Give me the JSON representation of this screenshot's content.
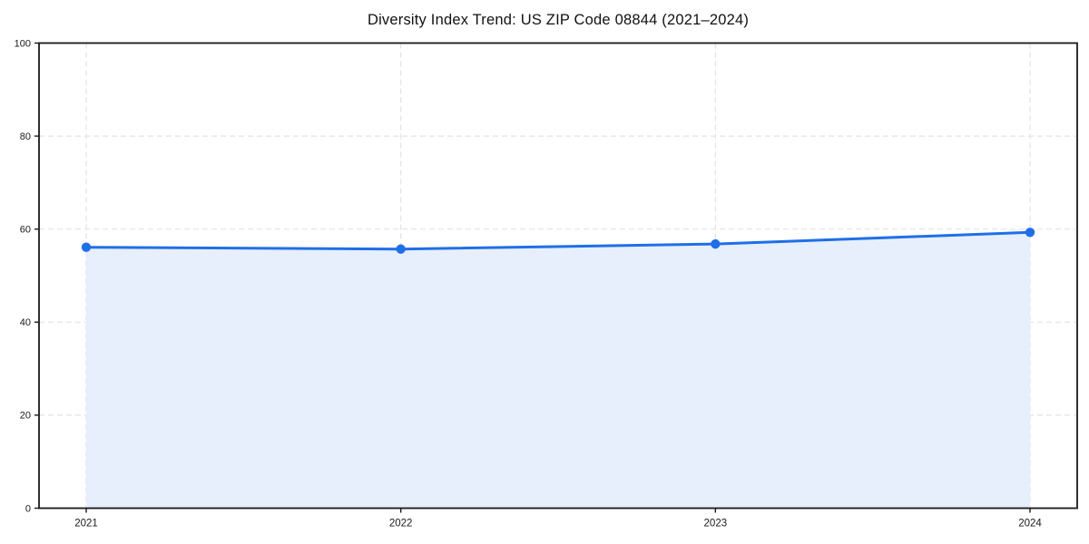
{
  "chart_data": {
    "type": "area",
    "title": "Diversity Index Trend: US ZIP Code 08844 (2021–2024)",
    "categories": [
      "2021",
      "2022",
      "2023",
      "2024"
    ],
    "series": [
      {
        "name": "Diversity Index",
        "values": [
          56.1,
          55.7,
          56.8,
          59.3
        ]
      }
    ],
    "xlabel": "",
    "ylabel": "",
    "ylim": [
      0,
      100
    ],
    "yticks": [
      0,
      20,
      40,
      60,
      80,
      100
    ],
    "grid": true,
    "grid_style": "dashed",
    "legend": "none",
    "marker": "circle",
    "colors": {
      "line": "#1f6fe8",
      "fill": "#e7effc",
      "grid": "#e2e2e2",
      "axis": "#1a1a1a",
      "text": "#1a1a1a",
      "background": "#ffffff"
    }
  }
}
